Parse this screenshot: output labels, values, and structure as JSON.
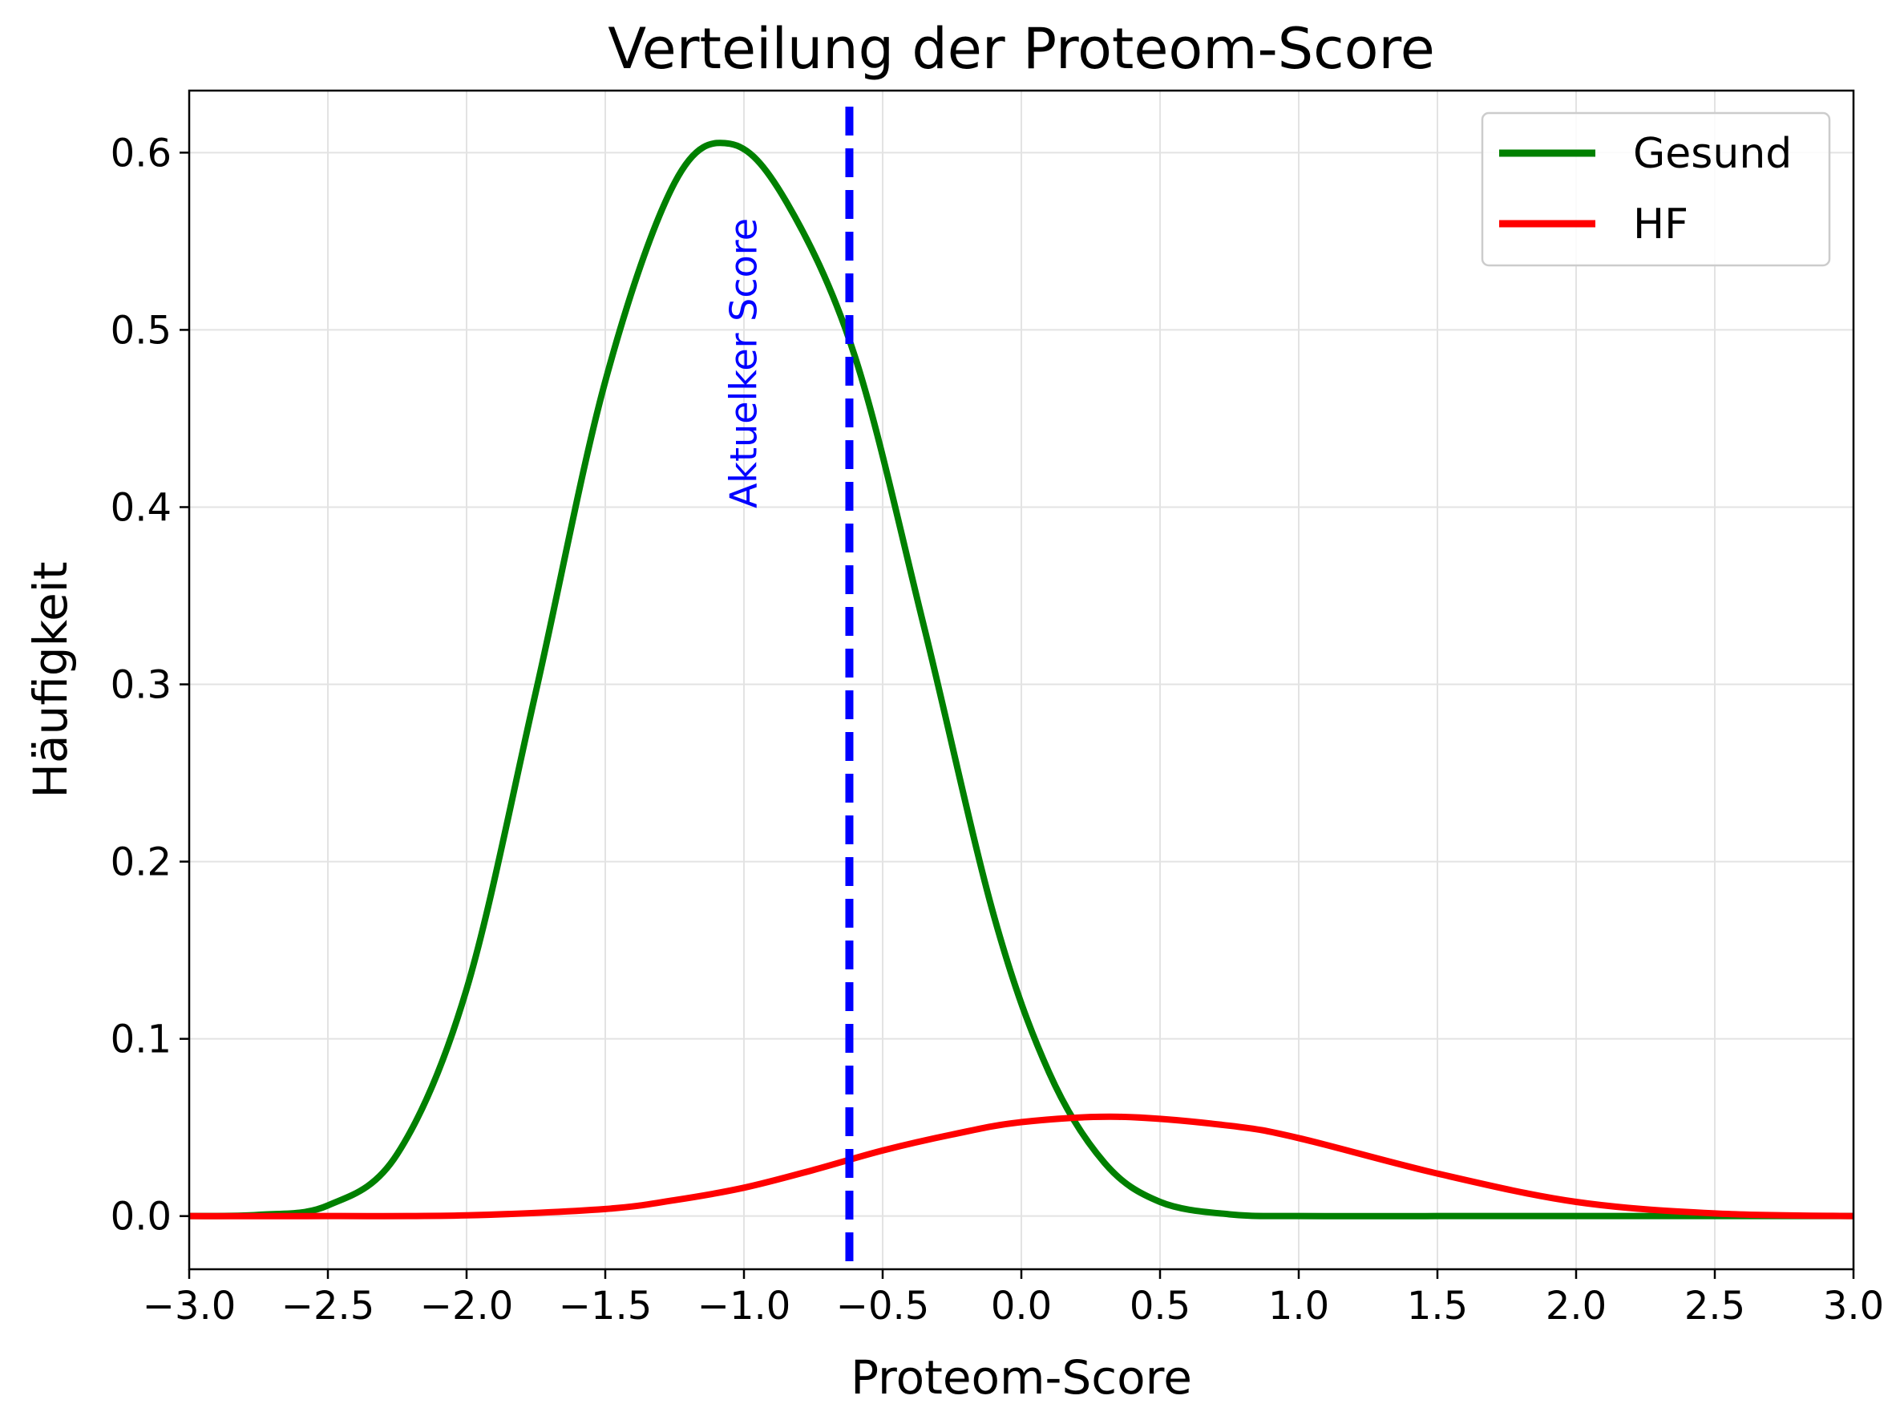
{
  "chart_data": {
    "type": "line",
    "title": "Verteilung der Proteom-Score",
    "xlabel": "Proteom-Score",
    "ylabel": "Häufigkeit",
    "xlim": [
      -3.0,
      3.0
    ],
    "ylim": [
      -0.03,
      0.635
    ],
    "xticks": [
      -3.0,
      -2.5,
      -2.0,
      -1.5,
      -1.0,
      -0.5,
      0.0,
      0.5,
      1.0,
      1.5,
      2.0,
      2.5,
      3.0
    ],
    "xtick_labels": [
      "−3.0",
      "−2.5",
      "−2.0",
      "−1.5",
      "−1.0",
      "−0.5",
      "0.0",
      "0.5",
      "1.0",
      "1.5",
      "2.0",
      "2.5",
      "3.0"
    ],
    "yticks": [
      0.0,
      0.1,
      0.2,
      0.3,
      0.4,
      0.5,
      0.6
    ],
    "ytick_labels": [
      "0.0",
      "0.1",
      "0.2",
      "0.3",
      "0.4",
      "0.5",
      "0.6"
    ],
    "grid": true,
    "legend_position": "top-right",
    "series": [
      {
        "name": "Gesund",
        "color": "#008000",
        "x": [
          -3.0,
          -2.75,
          -2.5,
          -2.25,
          -2.0,
          -1.75,
          -1.5,
          -1.25,
          -1.05,
          -0.85,
          -0.6,
          -0.35,
          -0.1,
          0.1,
          0.3,
          0.5,
          0.75,
          1.0,
          1.5,
          2.0,
          3.0
        ],
        "y": [
          0.0,
          0.0007,
          0.006,
          0.035,
          0.128,
          0.296,
          0.471,
          0.583,
          0.605,
          0.573,
          0.485,
          0.332,
          0.17,
          0.081,
          0.03,
          0.008,
          0.001,
          0.0,
          0.0,
          0.0,
          0.0
        ]
      },
      {
        "name": "HF",
        "color": "#ff0000",
        "x": [
          -3.0,
          -2.5,
          -2.0,
          -1.5,
          -1.25,
          -1.0,
          -0.75,
          -0.5,
          -0.25,
          0.0,
          0.35,
          0.75,
          1.0,
          1.5,
          2.0,
          2.5,
          3.0
        ],
        "y": [
          0.0,
          0.0,
          0.0004,
          0.004,
          0.009,
          0.016,
          0.026,
          0.037,
          0.046,
          0.053,
          0.056,
          0.051,
          0.044,
          0.024,
          0.008,
          0.0015,
          0.0
        ]
      }
    ],
    "vline": {
      "x": -0.62,
      "label": "Aktuelker Score",
      "color": "#0000ff",
      "style": "dashed"
    }
  }
}
